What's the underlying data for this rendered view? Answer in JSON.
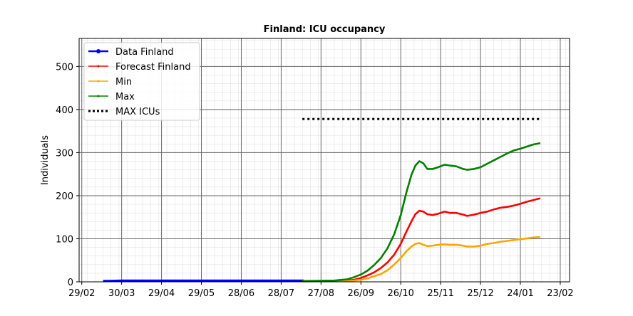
{
  "chart_data": {
    "type": "line",
    "title": "Finland: ICU occupancy",
    "xlabel": "",
    "ylabel": "Individuals",
    "ylim": [
      0,
      565
    ],
    "yticks": [
      0,
      100,
      200,
      300,
      400,
      500
    ],
    "x_range_days": [
      0,
      268
    ],
    "x_start_label": "29/02",
    "xticks": [
      {
        "day": 0,
        "label": "29/02"
      },
      {
        "day": 30,
        "label": "30/03"
      },
      {
        "day": 60,
        "label": "29/04"
      },
      {
        "day": 90,
        "label": "29/05"
      },
      {
        "day": 120,
        "label": "28/06"
      },
      {
        "day": 150,
        "label": "28/07"
      },
      {
        "day": 180,
        "label": "27/08"
      },
      {
        "day": 210,
        "label": "26/09"
      },
      {
        "day": 240,
        "label": "26/10"
      },
      {
        "day": 270,
        "label": "25/11"
      },
      {
        "day": 300,
        "label": "25/12"
      },
      {
        "day": 330,
        "label": "24/01"
      },
      {
        "day": 360,
        "label": "23/02"
      }
    ],
    "grid": true,
    "legend_placement": "top-left",
    "series": [
      {
        "name": "Data Finland",
        "color": "#0000ff",
        "style": "solid-marker",
        "points": [
          [
            16,
            2
          ],
          [
            20,
            2
          ],
          [
            30,
            3
          ],
          [
            60,
            3
          ],
          [
            90,
            3
          ],
          [
            120,
            3
          ],
          [
            150,
            3
          ],
          [
            167,
            3
          ]
        ]
      },
      {
        "name": "Forecast Finland",
        "color": "#ff0000",
        "style": "solid",
        "points": [
          [
            166,
            2
          ],
          [
            190,
            2
          ],
          [
            200,
            3
          ],
          [
            205,
            5
          ],
          [
            210,
            9
          ],
          [
            215,
            15
          ],
          [
            220,
            22
          ],
          [
            225,
            32
          ],
          [
            230,
            45
          ],
          [
            235,
            63
          ],
          [
            240,
            88
          ],
          [
            244,
            115
          ],
          [
            248,
            140
          ],
          [
            251,
            157
          ],
          [
            254,
            165
          ],
          [
            257,
            163
          ],
          [
            260,
            157
          ],
          [
            264,
            155
          ],
          [
            268,
            158
          ],
          [
            273,
            163
          ],
          [
            277,
            160
          ],
          [
            282,
            160
          ],
          [
            287,
            156
          ],
          [
            290,
            153
          ],
          [
            295,
            156
          ],
          [
            300,
            160
          ],
          [
            305,
            163
          ],
          [
            310,
            168
          ],
          [
            315,
            172
          ],
          [
            320,
            174
          ],
          [
            325,
            177
          ],
          [
            330,
            181
          ],
          [
            335,
            186
          ],
          [
            340,
            190
          ],
          [
            345,
            194
          ]
        ]
      },
      {
        "name": "Min",
        "color": "#ffa500",
        "style": "solid",
        "points": [
          [
            166,
            1
          ],
          [
            190,
            2
          ],
          [
            200,
            2
          ],
          [
            205,
            3
          ],
          [
            210,
            5
          ],
          [
            215,
            8
          ],
          [
            220,
            13
          ],
          [
            225,
            18
          ],
          [
            230,
            27
          ],
          [
            235,
            40
          ],
          [
            240,
            55
          ],
          [
            244,
            70
          ],
          [
            248,
            82
          ],
          [
            251,
            88
          ],
          [
            254,
            90
          ],
          [
            257,
            86
          ],
          [
            260,
            83
          ],
          [
            264,
            84
          ],
          [
            268,
            86
          ],
          [
            273,
            87
          ],
          [
            277,
            86
          ],
          [
            282,
            86
          ],
          [
            287,
            84
          ],
          [
            290,
            82
          ],
          [
            295,
            82
          ],
          [
            300,
            84
          ],
          [
            305,
            88
          ],
          [
            310,
            90
          ],
          [
            315,
            93
          ],
          [
            320,
            95
          ],
          [
            325,
            97
          ],
          [
            330,
            99
          ],
          [
            335,
            101
          ],
          [
            340,
            103
          ],
          [
            345,
            104
          ]
        ]
      },
      {
        "name": "Max",
        "color": "#008000",
        "style": "solid",
        "points": [
          [
            166,
            2
          ],
          [
            190,
            3
          ],
          [
            200,
            6
          ],
          [
            205,
            11
          ],
          [
            210,
            17
          ],
          [
            215,
            26
          ],
          [
            220,
            39
          ],
          [
            225,
            55
          ],
          [
            230,
            78
          ],
          [
            235,
            110
          ],
          [
            240,
            155
          ],
          [
            244,
            205
          ],
          [
            248,
            248
          ],
          [
            251,
            270
          ],
          [
            254,
            280
          ],
          [
            257,
            275
          ],
          [
            260,
            262
          ],
          [
            264,
            262
          ],
          [
            268,
            266
          ],
          [
            273,
            272
          ],
          [
            277,
            270
          ],
          [
            282,
            268
          ],
          [
            287,
            262
          ],
          [
            290,
            260
          ],
          [
            295,
            262
          ],
          [
            300,
            266
          ],
          [
            305,
            274
          ],
          [
            310,
            282
          ],
          [
            315,
            290
          ],
          [
            320,
            298
          ],
          [
            325,
            305
          ],
          [
            330,
            309
          ],
          [
            335,
            314
          ],
          [
            340,
            319
          ],
          [
            345,
            322
          ]
        ]
      },
      {
        "name": "MAX ICUs",
        "color": "#000000",
        "style": "dotted",
        "points": [
          [
            166,
            378
          ],
          [
            345,
            378
          ]
        ]
      }
    ]
  }
}
